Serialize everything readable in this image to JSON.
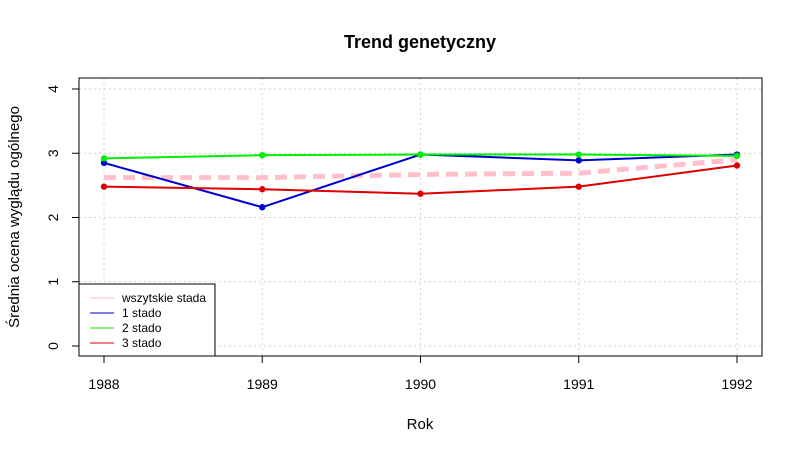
{
  "chart_data": {
    "type": "line",
    "title": "Trend genetyczny",
    "xlabel": "Rok",
    "ylabel": "Średnia ocena wyglądu ogólnego",
    "x": [
      1988,
      1989,
      1990,
      1991,
      1992
    ],
    "xlim": [
      1988,
      1992
    ],
    "ylim": [
      0,
      4
    ],
    "yticks": [
      0,
      1,
      2,
      3,
      4
    ],
    "grid": true,
    "legend_position": "bottom-left",
    "series": [
      {
        "name": "wszytskie stada",
        "color": "#ffc0cb",
        "dashed": true,
        "markers": false,
        "values": [
          2.62,
          2.62,
          2.67,
          2.69,
          2.9
        ]
      },
      {
        "name": "1 stado",
        "color": "#0000cd",
        "dashed": false,
        "markers": true,
        "values": [
          2.85,
          2.16,
          2.98,
          2.89,
          2.98
        ]
      },
      {
        "name": "2 stado",
        "color": "#00ee00",
        "dashed": false,
        "markers": true,
        "values": [
          2.92,
          2.97,
          2.98,
          2.98,
          2.96
        ]
      },
      {
        "name": "3 stado",
        "color": "#dd0000",
        "dashed": false,
        "markers": true,
        "values": [
          2.48,
          2.44,
          2.37,
          2.48,
          2.81
        ]
      }
    ]
  }
}
